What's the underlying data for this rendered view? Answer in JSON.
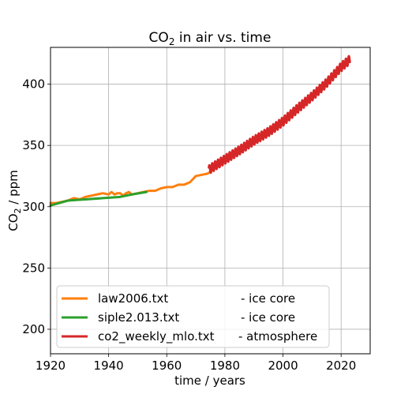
{
  "chart_data": {
    "type": "line",
    "title": "CO",
    "title_sub": "2",
    "title_rest": " in air vs. time",
    "xlabel": "time / years",
    "ylabel_pre": "CO",
    "ylabel_sub": "2",
    "ylabel_rest": " / ppm",
    "xlim": [
      1920,
      2030
    ],
    "ylim": [
      180,
      430
    ],
    "xticks": [
      "1920",
      "1940",
      "1960",
      "1980",
      "2000",
      "2020"
    ],
    "yticks": [
      "200",
      "250",
      "300",
      "350",
      "400"
    ],
    "grid": true,
    "legend_position": "lower-left",
    "series": [
      {
        "name": "law2006.txt",
        "legend_suffix": "- ice core",
        "color": "#ff7f0e",
        "x": [
          1920,
          1922,
          1924,
          1926,
          1928,
          1930,
          1932,
          1934,
          1936,
          1938,
          1940,
          1941,
          1942,
          1943,
          1944,
          1945,
          1946,
          1947,
          1948,
          1950,
          1952,
          1954,
          1956,
          1958,
          1960,
          1962,
          1964,
          1966,
          1968,
          1970,
          1972,
          1974,
          1976
        ],
        "y": [
          303,
          303,
          304,
          305,
          307,
          306,
          308,
          309,
          310,
          311,
          310,
          312,
          310,
          311,
          311,
          309,
          311,
          312,
          310,
          311,
          312,
          313,
          313,
          315,
          316,
          316,
          318,
          318,
          320,
          325,
          326,
          327,
          330
        ]
      },
      {
        "name": "siple2.013.txt",
        "legend_suffix": "- ice core",
        "color": "#2ca02c",
        "x": [
          1920,
          1926,
          1932,
          1938,
          1944,
          1948,
          1953
        ],
        "y": [
          301,
          305,
          306,
          307,
          308,
          310,
          312
        ]
      },
      {
        "name": "co2_weekly_mlo.txt",
        "legend_suffix": "- atmosphere",
        "color": "#d62728",
        "x": [
          1974.5,
          1975,
          1980,
          1985,
          1990,
          1995,
          2000,
          2005,
          2010,
          2015,
          2020,
          2023
        ],
        "y": [
          330,
          331,
          338.5,
          346,
          354,
          361,
          369.5,
          380,
          390,
          401,
          414,
          420
        ],
        "seasonal_amplitude": 3.5
      }
    ]
  }
}
